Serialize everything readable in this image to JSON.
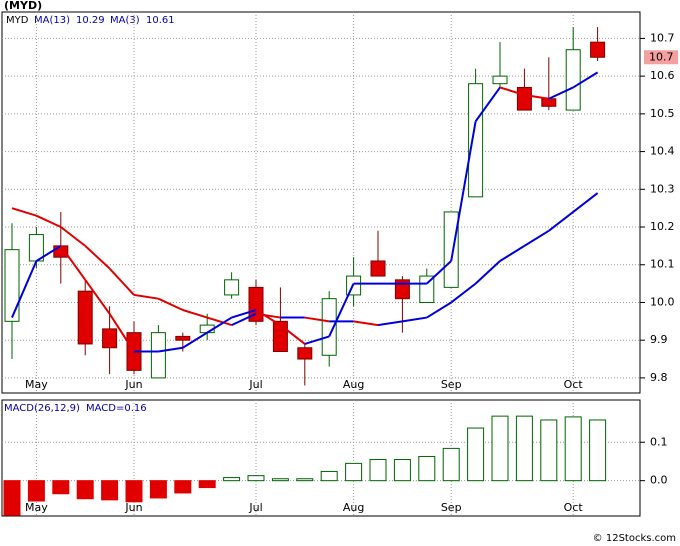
{
  "chart_data": [
    {
      "type": "candlestick",
      "title": "(MYD)",
      "symbol": "MYD",
      "categories": [
        null,
        "May",
        null,
        null,
        null,
        "Jun",
        null,
        null,
        null,
        null,
        "Jul",
        null,
        null,
        null,
        "Aug",
        null,
        null,
        null,
        "Sep",
        null,
        null,
        null,
        null,
        "Oct",
        null
      ],
      "open": [
        9.95,
        10.11,
        10.15,
        10.03,
        9.93,
        9.92,
        9.8,
        9.91,
        9.92,
        10.02,
        10.04,
        9.95,
        9.88,
        9.86,
        10.02,
        10.11,
        10.06,
        10.0,
        10.04,
        10.28,
        10.58,
        10.57,
        10.54,
        10.51,
        10.69
      ],
      "high": [
        10.21,
        10.2,
        10.24,
        10.06,
        9.99,
        9.95,
        9.94,
        9.92,
        9.97,
        10.08,
        10.06,
        10.04,
        9.89,
        10.03,
        10.12,
        10.19,
        10.07,
        10.09,
        10.24,
        10.62,
        10.69,
        10.62,
        10.65,
        10.73,
        10.73
      ],
      "low": [
        9.85,
        10.09,
        10.05,
        9.86,
        9.81,
        9.81,
        9.8,
        9.87,
        9.9,
        10.01,
        9.94,
        9.87,
        9.78,
        9.83,
        9.99,
        10.07,
        9.92,
        10.0,
        10.04,
        10.28,
        10.57,
        10.51,
        10.51,
        10.51,
        10.64
      ],
      "close": [
        10.14,
        10.18,
        10.12,
        9.89,
        9.88,
        9.82,
        9.92,
        9.9,
        9.94,
        10.06,
        9.95,
        9.87,
        9.85,
        10.01,
        10.07,
        10.07,
        10.01,
        10.07,
        10.24,
        10.58,
        10.6,
        10.51,
        10.52,
        10.67,
        10.65
      ],
      "up_fill": "#ffffff",
      "up_stroke": "#006400",
      "down_fill": "#e00000",
      "down_stroke": "#800000",
      "series": [
        {
          "name": "MA(13)",
          "last_value": 10.29,
          "up_color": "#0000dd",
          "down_color": "#e00000",
          "values": [
            10.25,
            10.23,
            10.2,
            10.15,
            10.09,
            10.02,
            10.01,
            9.98,
            9.96,
            9.94,
            9.97,
            9.96,
            9.96,
            9.95,
            9.95,
            9.94,
            9.95,
            9.96,
            10.0,
            10.05,
            10.11,
            10.15,
            10.19,
            10.24,
            10.29
          ]
        },
        {
          "name": "MA(3)",
          "last_value": 10.61,
          "up_color": "#0000dd",
          "down_color": "#e00000",
          "values": [
            9.96,
            10.11,
            10.15,
            10.06,
            9.97,
            9.87,
            9.87,
            9.88,
            9.92,
            9.96,
            9.98,
            9.94,
            9.89,
            9.91,
            10.05,
            10.05,
            10.05,
            10.05,
            10.11,
            10.48,
            10.57,
            10.55,
            10.54,
            10.57,
            10.61
          ]
        }
      ],
      "last_label": "10.7",
      "last_label_color": "#f4a0a0",
      "ylim": [
        9.76,
        10.77
      ],
      "yticks": [
        9.8,
        9.9,
        {
          "value": 10,
          "label": "10.0"
        },
        10.1,
        10.2,
        10.3,
        10.4,
        10.5,
        10.6,
        10.7
      ],
      "grid": true
    },
    {
      "type": "bar",
      "title": "MACD(26,12,9)",
      "subtitle": "MACD=0.16",
      "categories": [
        null,
        "May",
        null,
        null,
        null,
        "Jun",
        null,
        null,
        null,
        null,
        "Jul",
        null,
        null,
        null,
        "Aug",
        null,
        null,
        null,
        "Sep",
        null,
        null,
        null,
        null,
        "Oct",
        null
      ],
      "values": [
        -0.09,
        -0.053,
        -0.034,
        -0.047,
        -0.05,
        -0.055,
        -0.045,
        -0.032,
        -0.018,
        0.008,
        0.013,
        0.005,
        0.005,
        0.024,
        0.045,
        0.055,
        0.055,
        0.063,
        0.084,
        0.137,
        0.168,
        0.168,
        0.158,
        0.166,
        0.158
      ],
      "up_color": "#006400",
      "down_color": "#e00000",
      "ylim": [
        -0.092,
        0.21
      ],
      "yticks": [
        0.1,
        {
          "value": 0,
          "label": "0.0"
        }
      ],
      "grid": true
    },
    {
      "type": "footer",
      "title": "© 12Stocks.com"
    }
  ]
}
